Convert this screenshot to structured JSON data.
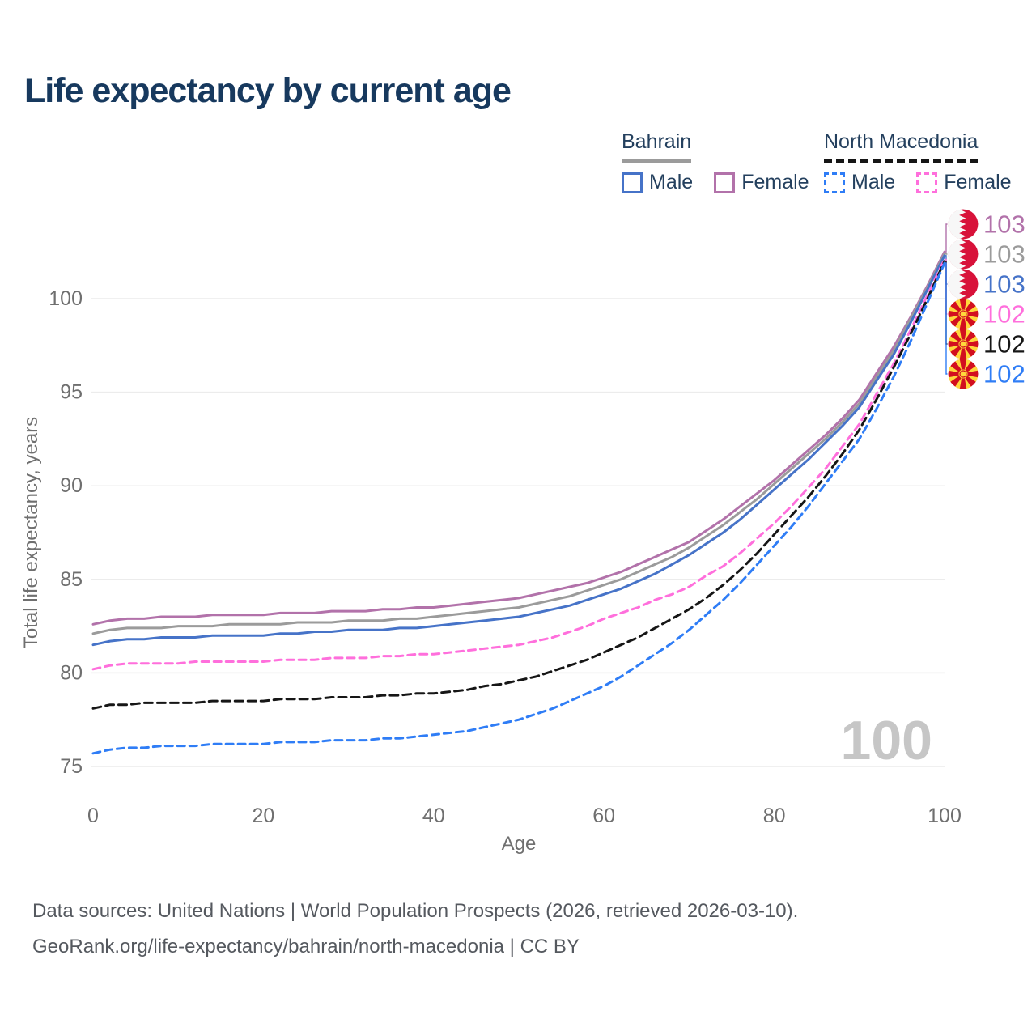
{
  "title": "Life expectancy by current age",
  "legend": {
    "groups": [
      {
        "label": "Bahrain",
        "line_style": "solid",
        "items": [
          {
            "label": "Male"
          },
          {
            "label": "Female"
          }
        ]
      },
      {
        "label": "North Macedonia",
        "line_style": "dashed",
        "items": [
          {
            "label": "Male"
          },
          {
            "label": "Female"
          }
        ]
      }
    ]
  },
  "chart_data": {
    "type": "line",
    "title": "Life expectancy by current age",
    "xlabel": "Age",
    "ylabel": "Total life expectancy, years",
    "xlim": [
      0,
      100
    ],
    "ylim": [
      75,
      103.5
    ],
    "xticks": [
      0,
      20,
      40,
      60,
      80,
      100
    ],
    "yticks": [
      75,
      80,
      85,
      90,
      95,
      100
    ],
    "grid": "horizontal-only",
    "legend_position": "top-right",
    "watermark": "100",
    "x": [
      0,
      2,
      4,
      6,
      8,
      10,
      12,
      14,
      16,
      18,
      20,
      22,
      24,
      26,
      28,
      30,
      32,
      34,
      36,
      38,
      40,
      42,
      44,
      46,
      48,
      50,
      52,
      54,
      56,
      58,
      60,
      62,
      64,
      66,
      68,
      70,
      72,
      74,
      76,
      78,
      80,
      82,
      84,
      86,
      88,
      90,
      92,
      94,
      96,
      98,
      100
    ],
    "series": [
      {
        "name": "Bahrain Female",
        "country": "Bahrain",
        "sex": "Female",
        "style": "solid",
        "color": "#b272aa",
        "dash": null,
        "end_label": "103",
        "flag": "bahrain",
        "values": [
          82.6,
          82.8,
          82.9,
          82.9,
          83.0,
          83.0,
          83.0,
          83.1,
          83.1,
          83.1,
          83.1,
          83.2,
          83.2,
          83.2,
          83.3,
          83.3,
          83.3,
          83.4,
          83.4,
          83.5,
          83.5,
          83.6,
          83.7,
          83.8,
          83.9,
          84.0,
          84.2,
          84.4,
          84.6,
          84.8,
          85.1,
          85.4,
          85.8,
          86.2,
          86.6,
          87.0,
          87.6,
          88.2,
          88.9,
          89.6,
          90.3,
          91.1,
          91.9,
          92.7,
          93.6,
          94.6,
          96.0,
          97.4,
          99.0,
          100.7,
          102.5
        ]
      },
      {
        "name": "Bahrain",
        "country": "Bahrain",
        "sex": "Both sexes",
        "style": "solid",
        "color": "#9b9b9b",
        "dash": null,
        "end_label": "103",
        "flag": "bahrain",
        "values": [
          82.1,
          82.3,
          82.4,
          82.4,
          82.4,
          82.5,
          82.5,
          82.5,
          82.6,
          82.6,
          82.6,
          82.6,
          82.7,
          82.7,
          82.7,
          82.8,
          82.8,
          82.8,
          82.9,
          82.9,
          83.0,
          83.1,
          83.2,
          83.3,
          83.4,
          83.5,
          83.7,
          83.9,
          84.1,
          84.4,
          84.7,
          85.0,
          85.4,
          85.8,
          86.2,
          86.7,
          87.3,
          87.9,
          88.6,
          89.3,
          90.1,
          90.9,
          91.7,
          92.5,
          93.4,
          94.4,
          95.8,
          97.2,
          98.9,
          100.6,
          102.4
        ]
      },
      {
        "name": "Bahrain Male",
        "country": "Bahrain",
        "sex": "Male",
        "style": "solid",
        "color": "#4673c8",
        "dash": null,
        "end_label": "103",
        "flag": "bahrain",
        "values": [
          81.5,
          81.7,
          81.8,
          81.8,
          81.9,
          81.9,
          81.9,
          82.0,
          82.0,
          82.0,
          82.0,
          82.1,
          82.1,
          82.2,
          82.2,
          82.3,
          82.3,
          82.3,
          82.4,
          82.4,
          82.5,
          82.6,
          82.7,
          82.8,
          82.9,
          83.0,
          83.2,
          83.4,
          83.6,
          83.9,
          84.2,
          84.5,
          84.9,
          85.3,
          85.8,
          86.3,
          86.9,
          87.5,
          88.2,
          89.0,
          89.8,
          90.6,
          91.4,
          92.3,
          93.2,
          94.2,
          95.6,
          97.0,
          98.7,
          100.5,
          102.3
        ]
      },
      {
        "name": "North Macedonia Female",
        "country": "North Macedonia",
        "sex": "Female",
        "style": "dashed",
        "color": "#ff6fdc",
        "dash": "9 6",
        "end_label": "102",
        "flag": "north-macedonia",
        "values": [
          80.2,
          80.4,
          80.5,
          80.5,
          80.5,
          80.5,
          80.6,
          80.6,
          80.6,
          80.6,
          80.6,
          80.7,
          80.7,
          80.7,
          80.8,
          80.8,
          80.8,
          80.9,
          80.9,
          81.0,
          81.0,
          81.1,
          81.2,
          81.3,
          81.4,
          81.5,
          81.7,
          81.9,
          82.2,
          82.5,
          82.9,
          83.2,
          83.5,
          83.9,
          84.2,
          84.6,
          85.2,
          85.7,
          86.4,
          87.2,
          88.0,
          88.9,
          89.9,
          90.9,
          92.1,
          93.3,
          94.9,
          96.5,
          98.3,
          100.2,
          102.1
        ]
      },
      {
        "name": "North Macedonia",
        "country": "North Macedonia",
        "sex": "Both sexes",
        "style": "dashed",
        "color": "#161616",
        "dash": "10 6",
        "end_label": "102",
        "flag": "north-macedonia",
        "values": [
          78.1,
          78.3,
          78.3,
          78.4,
          78.4,
          78.4,
          78.4,
          78.5,
          78.5,
          78.5,
          78.5,
          78.6,
          78.6,
          78.6,
          78.7,
          78.7,
          78.7,
          78.8,
          78.8,
          78.9,
          78.9,
          79.0,
          79.1,
          79.3,
          79.4,
          79.6,
          79.8,
          80.1,
          80.4,
          80.7,
          81.1,
          81.5,
          81.9,
          82.4,
          82.9,
          83.4,
          84.0,
          84.7,
          85.5,
          86.4,
          87.4,
          88.4,
          89.4,
          90.5,
          91.7,
          93.0,
          94.6,
          96.3,
          98.1,
          100.0,
          102.0
        ]
      },
      {
        "name": "North Macedonia Male",
        "country": "North Macedonia",
        "sex": "Male",
        "style": "dashed",
        "color": "#2f7df6",
        "dash": "9 6",
        "end_label": "102",
        "flag": "north-macedonia",
        "values": [
          75.7,
          75.9,
          76.0,
          76.0,
          76.1,
          76.1,
          76.1,
          76.2,
          76.2,
          76.2,
          76.2,
          76.3,
          76.3,
          76.3,
          76.4,
          76.4,
          76.4,
          76.5,
          76.5,
          76.6,
          76.7,
          76.8,
          76.9,
          77.1,
          77.3,
          77.5,
          77.8,
          78.1,
          78.5,
          78.9,
          79.3,
          79.8,
          80.4,
          81.0,
          81.6,
          82.3,
          83.1,
          83.9,
          84.8,
          85.8,
          86.8,
          87.8,
          88.9,
          90.1,
          91.3,
          92.5,
          94.1,
          95.8,
          97.7,
          99.8,
          101.9
        ]
      }
    ],
    "flag_colors": {
      "bahrain": {
        "red": "#d8123a",
        "white": "#f7f7f7"
      },
      "north_macedonia": {
        "red": "#d20f1f",
        "yellow": "#ffd83c"
      }
    }
  },
  "colors": {
    "title": "#17395e",
    "axis_text": "#6f6f6f",
    "gridline": "#ececec",
    "watermark": "#c6c6c6",
    "legend_text": "#24405e",
    "footer_text": "#55595f"
  },
  "footer": {
    "line1": "Data sources: United Nations | World Population Prospects (2026, retrieved 2026-03-10).",
    "line2": "GeoRank.org/life-expectancy/bahrain/north-macedonia | CC BY"
  }
}
